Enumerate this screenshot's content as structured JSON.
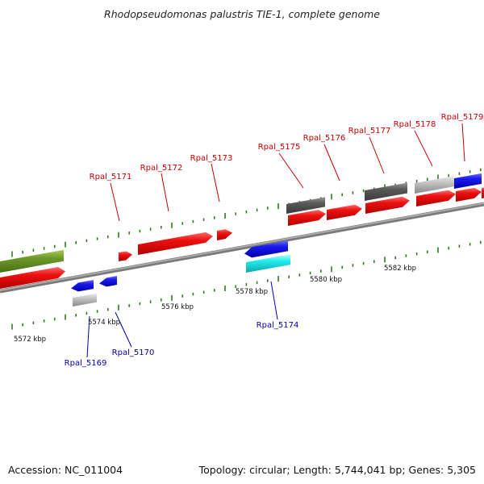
{
  "title": "Rhodopseudomonas palustris TIE-1, complete genome",
  "accession": "Accession: NC_011004",
  "topology": "Topology: circular; Length: 5,744,041 bp; Genes: 5,305",
  "colors": {
    "backbone": "#808080",
    "tick": "#2e7d1e",
    "top_label": "#cc0000",
    "bottom_label": "#0000b0",
    "red": "#ee1111",
    "blue": "#1a1aee",
    "cyan": "#22eeee",
    "dark_gray": "#5a5a5a",
    "light_gray": "#c6c6c6",
    "olive": "#6e9a2a"
  },
  "scale_labels": [
    {
      "text": "5572 kbp",
      "kbp": 5572
    },
    {
      "text": "5574 kbp",
      "kbp": 5574
    },
    {
      "text": "5576 kbp",
      "kbp": 5576
    },
    {
      "text": "5578 kbp",
      "kbp": 5578
    },
    {
      "text": "5580 kbp",
      "kbp": 5580
    },
    {
      "text": "5582 kbp",
      "kbp": 5582
    }
  ],
  "top_labels": [
    "Rpal_5171",
    "Rpal_5172",
    "Rpal_5173",
    "Rpal_5175",
    "Rpal_5176",
    "Rpal_5177",
    "Rpal_5178",
    "Rpal_5179"
  ],
  "bottom_labels": [
    "Rpal_5169",
    "Rpal_5170",
    "Rpal_5174"
  ]
}
